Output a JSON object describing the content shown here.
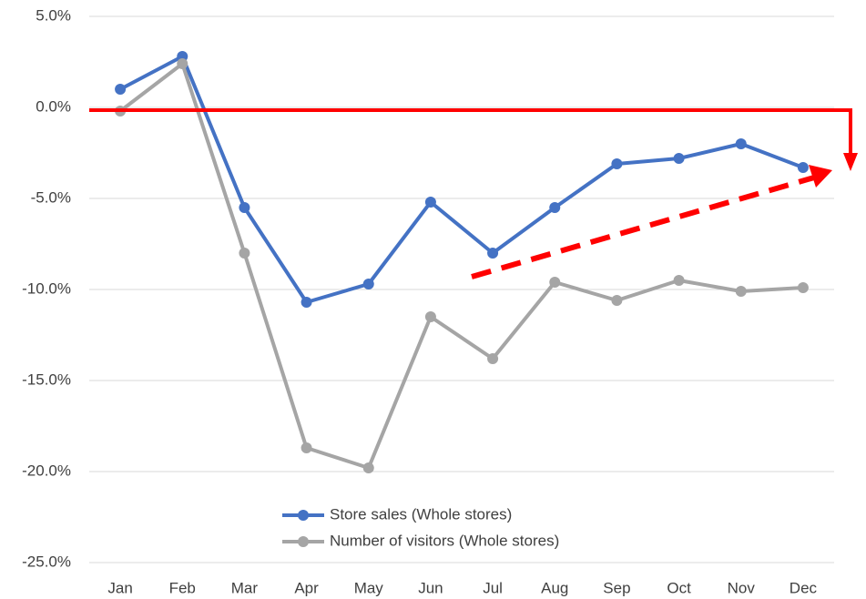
{
  "chart_data": {
    "type": "line",
    "categories": [
      "Jan",
      "Feb",
      "Mar",
      "Apr",
      "May",
      "Jun",
      "Jul",
      "Aug",
      "Sep",
      "Oct",
      "Nov",
      "Dec"
    ],
    "series": [
      {
        "name": "Store sales (Whole stores)",
        "color": "#4472c4",
        "values": [
          1.0,
          2.8,
          -5.5,
          -10.7,
          -9.7,
          -5.2,
          -8.0,
          -5.5,
          -3.1,
          -2.8,
          -2.0,
          -3.3
        ]
      },
      {
        "name": "Number of visitors (Whole stores)",
        "color": "#a5a5a5",
        "values": [
          -0.2,
          2.4,
          -8.0,
          -18.7,
          -19.8,
          -11.5,
          -13.8,
          -9.6,
          -10.6,
          -9.5,
          -10.1,
          -9.9
        ]
      }
    ],
    "ylim": [
      -25,
      5
    ],
    "yticks": [
      {
        "value": 5,
        "label": "5.0%"
      },
      {
        "value": 0,
        "label": "0.0%"
      },
      {
        "value": -5,
        "label": "-5.0%"
      },
      {
        "value": -10,
        "label": "-10.0%"
      },
      {
        "value": -15,
        "label": "-15.0%"
      },
      {
        "value": -20,
        "label": "-20.0%"
      },
      {
        "value": -25,
        "label": "-25.0%"
      }
    ],
    "grid": true,
    "legend": "bottom"
  }
}
